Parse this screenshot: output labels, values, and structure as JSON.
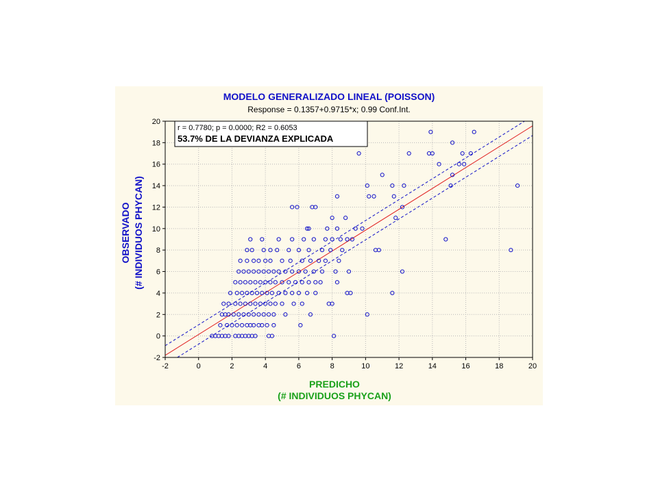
{
  "colors": {
    "background": "#ffffff",
    "panel": "#fdf9ea",
    "points": "#1010c8",
    "fit_line": "#e02020",
    "conf_lines": "#1010c8",
    "title": "#1010c8",
    "xlabel": "#1aa11a",
    "ylabel": "#1010c8",
    "grid": "#b8b8b8"
  },
  "chart_data": {
    "type": "scatter",
    "title": "MODELO GENERALIZADO LINEAL (POISSON)",
    "subtitle": "Response = 0.1357+0.9715*x; 0.99 Conf.Int.",
    "xlabel": [
      "PREDICHO",
      "(# INDIVIDUOS PHYCAN)"
    ],
    "ylabel": [
      "OBSERVADO",
      "(# INDIVIDUOS PHYCAN)"
    ],
    "xlim": [
      -2,
      20
    ],
    "ylim": [
      -2,
      20
    ],
    "xticks": [
      -2,
      0,
      2,
      4,
      6,
      8,
      10,
      12,
      14,
      16,
      18,
      20
    ],
    "yticks": [
      -2,
      0,
      2,
      4,
      6,
      8,
      10,
      12,
      14,
      16,
      18,
      20
    ],
    "grid": true,
    "annotation": {
      "line1": "r = 0.7780; p = 0.0000; R2 = 0.6053",
      "line2": "53.7% DE LA DEVIANZA EXPLICADA",
      "placement": "top-left"
    },
    "fit": {
      "intercept": 0.1357,
      "slope": 0.9715
    },
    "conf_band": {
      "upper_offset": 0.9,
      "lower_offset": -0.9
    },
    "points": [
      [
        0.8,
        0
      ],
      [
        1.0,
        0
      ],
      [
        1.2,
        0
      ],
      [
        1.4,
        0
      ],
      [
        1.6,
        0
      ],
      [
        1.8,
        0
      ],
      [
        2.2,
        0
      ],
      [
        2.4,
        0
      ],
      [
        2.6,
        0
      ],
      [
        2.8,
        0
      ],
      [
        3.0,
        0
      ],
      [
        3.2,
        0
      ],
      [
        3.4,
        0
      ],
      [
        4.2,
        0
      ],
      [
        4.4,
        0
      ],
      [
        8.1,
        0
      ],
      [
        1.3,
        1
      ],
      [
        1.7,
        1
      ],
      [
        2.0,
        1
      ],
      [
        2.3,
        1
      ],
      [
        2.6,
        1
      ],
      [
        2.9,
        1
      ],
      [
        3.1,
        1
      ],
      [
        3.3,
        1
      ],
      [
        3.6,
        1
      ],
      [
        3.8,
        1
      ],
      [
        4.1,
        1
      ],
      [
        4.5,
        1
      ],
      [
        6.1,
        1
      ],
      [
        1.4,
        2
      ],
      [
        1.6,
        2
      ],
      [
        1.8,
        2
      ],
      [
        2.1,
        2
      ],
      [
        2.4,
        2
      ],
      [
        2.7,
        2
      ],
      [
        3.0,
        2
      ],
      [
        3.3,
        2
      ],
      [
        3.6,
        2
      ],
      [
        3.9,
        2
      ],
      [
        4.2,
        2
      ],
      [
        4.5,
        2
      ],
      [
        5.2,
        2
      ],
      [
        6.7,
        2
      ],
      [
        10.1,
        2
      ],
      [
        1.5,
        3
      ],
      [
        1.8,
        3
      ],
      [
        2.2,
        3
      ],
      [
        2.5,
        3
      ],
      [
        2.8,
        3
      ],
      [
        3.1,
        3
      ],
      [
        3.4,
        3
      ],
      [
        3.7,
        3
      ],
      [
        4.0,
        3
      ],
      [
        4.3,
        3
      ],
      [
        4.6,
        3
      ],
      [
        5.0,
        3
      ],
      [
        5.7,
        3
      ],
      [
        6.2,
        3
      ],
      [
        7.8,
        3
      ],
      [
        8.0,
        3
      ],
      [
        1.9,
        4
      ],
      [
        2.3,
        4
      ],
      [
        2.6,
        4
      ],
      [
        2.9,
        4
      ],
      [
        3.2,
        4
      ],
      [
        3.5,
        4
      ],
      [
        3.8,
        4
      ],
      [
        4.1,
        4
      ],
      [
        4.4,
        4
      ],
      [
        4.8,
        4
      ],
      [
        5.2,
        4
      ],
      [
        5.6,
        4
      ],
      [
        6.0,
        4
      ],
      [
        6.5,
        4
      ],
      [
        7.0,
        4
      ],
      [
        8.9,
        4
      ],
      [
        9.1,
        4
      ],
      [
        11.6,
        4
      ],
      [
        2.2,
        5
      ],
      [
        2.5,
        5
      ],
      [
        2.8,
        5
      ],
      [
        3.1,
        5
      ],
      [
        3.4,
        5
      ],
      [
        3.7,
        5
      ],
      [
        4.0,
        5
      ],
      [
        4.3,
        5
      ],
      [
        4.6,
        5
      ],
      [
        5.0,
        5
      ],
      [
        5.4,
        5
      ],
      [
        5.8,
        5
      ],
      [
        6.2,
        5
      ],
      [
        6.6,
        5
      ],
      [
        7.0,
        5
      ],
      [
        7.3,
        5
      ],
      [
        8.3,
        5
      ],
      [
        2.4,
        6
      ],
      [
        2.7,
        6
      ],
      [
        3.0,
        6
      ],
      [
        3.3,
        6
      ],
      [
        3.6,
        6
      ],
      [
        3.9,
        6
      ],
      [
        4.2,
        6
      ],
      [
        4.5,
        6
      ],
      [
        4.8,
        6
      ],
      [
        5.2,
        6
      ],
      [
        5.6,
        6
      ],
      [
        6.0,
        6
      ],
      [
        6.4,
        6
      ],
      [
        6.9,
        6
      ],
      [
        7.4,
        6
      ],
      [
        8.2,
        6
      ],
      [
        9.0,
        6
      ],
      [
        12.2,
        6
      ],
      [
        2.5,
        7
      ],
      [
        2.9,
        7
      ],
      [
        3.3,
        7
      ],
      [
        3.6,
        7
      ],
      [
        4.0,
        7
      ],
      [
        4.3,
        7
      ],
      [
        5.0,
        7
      ],
      [
        5.5,
        7
      ],
      [
        6.2,
        7
      ],
      [
        6.7,
        7
      ],
      [
        7.2,
        7
      ],
      [
        7.6,
        7
      ],
      [
        8.4,
        7
      ],
      [
        2.9,
        8
      ],
      [
        3.2,
        8
      ],
      [
        3.9,
        8
      ],
      [
        4.3,
        8
      ],
      [
        4.7,
        8
      ],
      [
        5.4,
        8
      ],
      [
        6.0,
        8
      ],
      [
        6.6,
        8
      ],
      [
        7.4,
        8
      ],
      [
        7.9,
        8
      ],
      [
        8.6,
        8
      ],
      [
        10.6,
        8
      ],
      [
        10.8,
        8
      ],
      [
        18.7,
        8
      ],
      [
        3.1,
        9
      ],
      [
        3.8,
        9
      ],
      [
        4.8,
        9
      ],
      [
        5.6,
        9
      ],
      [
        6.3,
        9
      ],
      [
        6.9,
        9
      ],
      [
        7.6,
        9
      ],
      [
        8.0,
        9
      ],
      [
        8.5,
        9
      ],
      [
        8.9,
        9
      ],
      [
        9.2,
        9
      ],
      [
        14.8,
        9
      ],
      [
        6.5,
        10
      ],
      [
        6.6,
        10
      ],
      [
        7.7,
        10
      ],
      [
        8.3,
        10
      ],
      [
        9.4,
        10
      ],
      [
        9.8,
        10
      ],
      [
        8.0,
        11
      ],
      [
        8.8,
        11
      ],
      [
        11.8,
        11
      ],
      [
        5.6,
        12
      ],
      [
        5.9,
        12
      ],
      [
        6.8,
        12
      ],
      [
        7.0,
        12
      ],
      [
        12.2,
        12
      ],
      [
        8.3,
        13
      ],
      [
        10.2,
        13
      ],
      [
        10.5,
        13
      ],
      [
        11.7,
        13
      ],
      [
        10.1,
        14
      ],
      [
        11.6,
        14
      ],
      [
        12.3,
        14
      ],
      [
        15.1,
        14
      ],
      [
        19.1,
        14
      ],
      [
        11.0,
        15
      ],
      [
        15.2,
        15
      ],
      [
        14.4,
        16
      ],
      [
        15.6,
        16
      ],
      [
        15.9,
        16
      ],
      [
        9.6,
        17
      ],
      [
        12.6,
        17
      ],
      [
        13.8,
        17
      ],
      [
        14.0,
        17
      ],
      [
        15.8,
        17
      ],
      [
        16.3,
        17
      ],
      [
        15.2,
        18
      ],
      [
        13.9,
        19
      ],
      [
        16.5,
        19
      ]
    ]
  }
}
